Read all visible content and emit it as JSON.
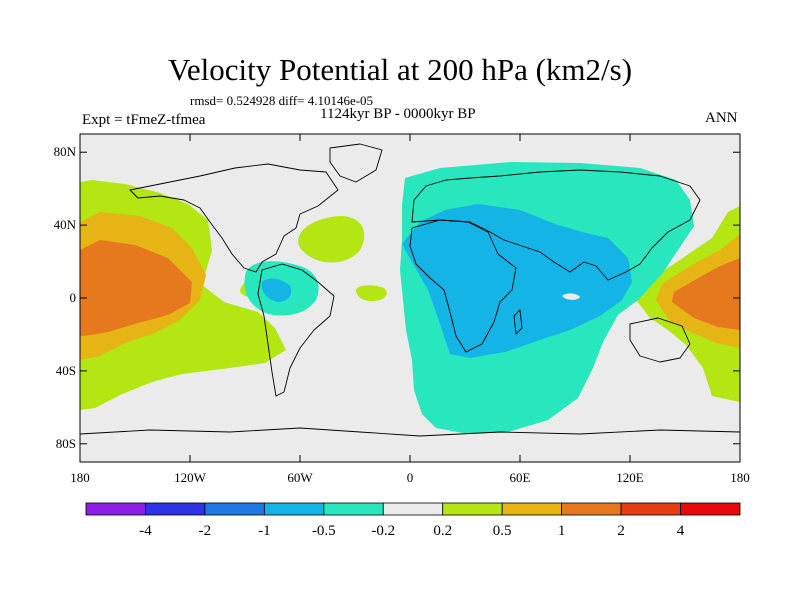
{
  "title": "Velocity Potential at 200 hPa (km2/s)",
  "stats": "rmsd= 0.524928 diff= 4.10146e-05",
  "left_label": "Expt = tFmeZ-tfmea",
  "center_label": "1124kyr BP - 0000kyr BP",
  "right_label": "ANN",
  "map": {
    "projection": "cylindrical-equidistant",
    "lon_range": [
      -180,
      180
    ],
    "lat_range": [
      -90,
      90
    ],
    "lat_ticks": [
      {
        "value": 80,
        "label": "80N"
      },
      {
        "value": 40,
        "label": "40N"
      },
      {
        "value": 0,
        "label": "0"
      },
      {
        "value": -40,
        "label": "40S"
      },
      {
        "value": -80,
        "label": "80S"
      }
    ],
    "lon_ticks": [
      {
        "value": -180,
        "label": "180"
      },
      {
        "value": -120,
        "label": "120W"
      },
      {
        "value": -60,
        "label": "60W"
      },
      {
        "value": 0,
        "label": "0"
      },
      {
        "value": 60,
        "label": "60E"
      },
      {
        "value": 120,
        "label": "120E"
      },
      {
        "value": 180,
        "label": "180"
      }
    ]
  },
  "colorbar": {
    "colors": [
      "#8c1ee6",
      "#2d32e6",
      "#1e78e6",
      "#14b4e6",
      "#28e6be",
      "#ebebeb",
      "#b4e614",
      "#e6b414",
      "#e6781e",
      "#e63c14",
      "#e60a0a"
    ],
    "labels": [
      "-4",
      "-2",
      "-1",
      "-0.5",
      "-0.2",
      "0.2",
      "0.5",
      "1",
      "2",
      "4"
    ]
  }
}
